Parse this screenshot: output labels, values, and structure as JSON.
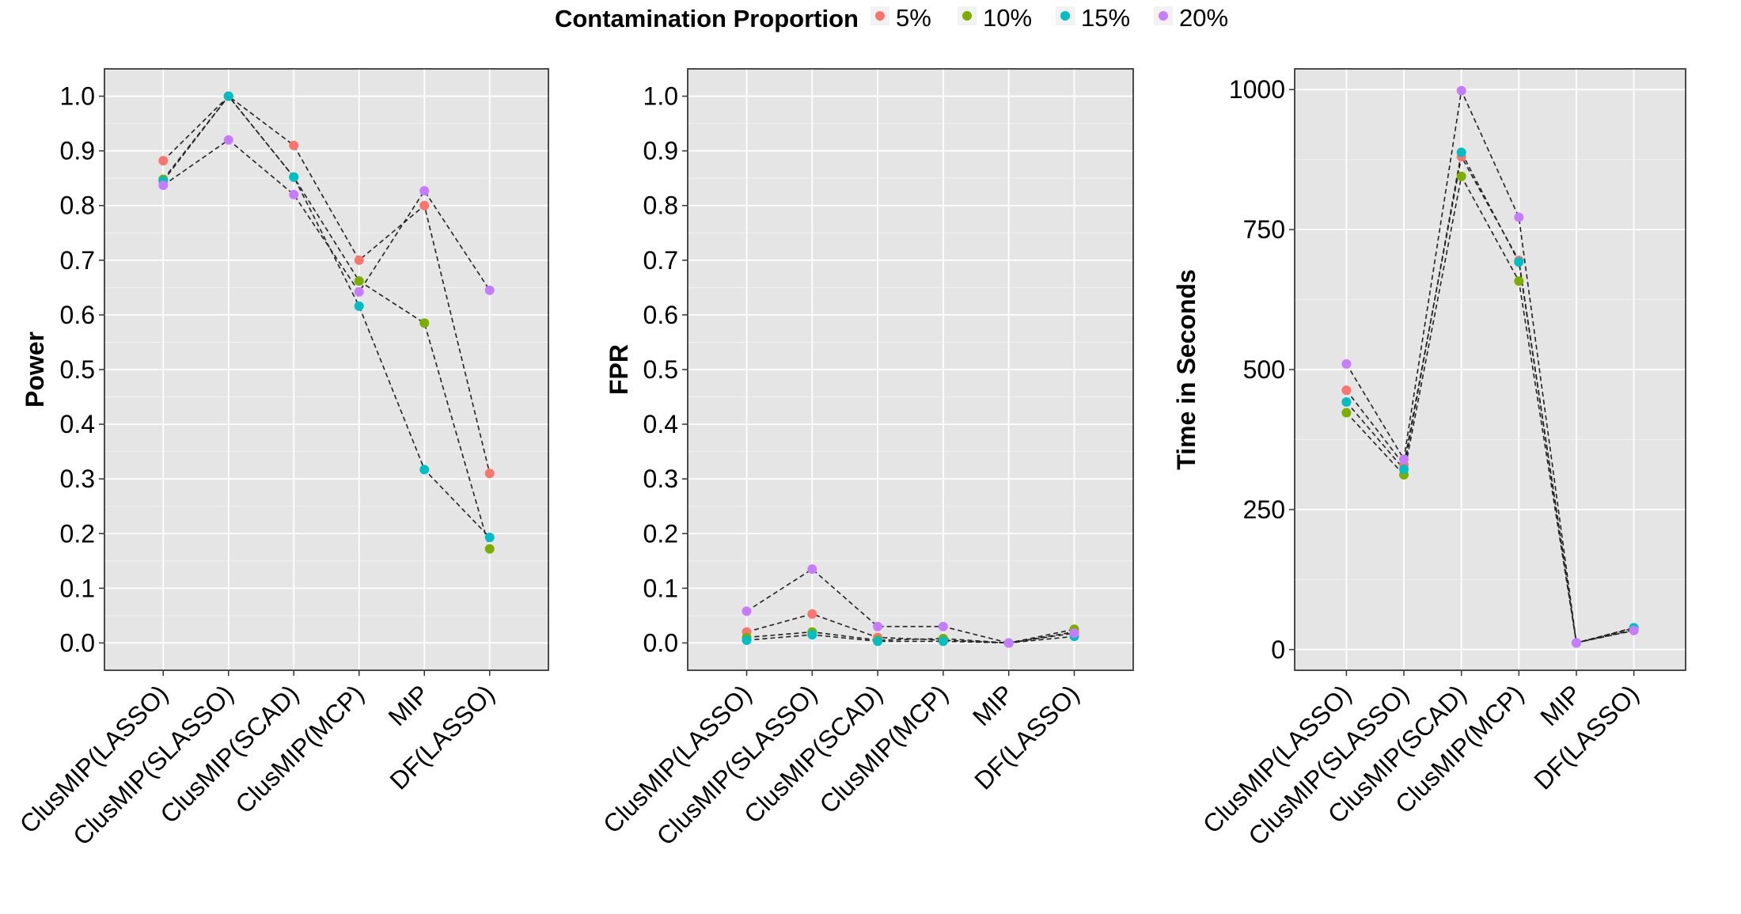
{
  "chart_data": [
    {
      "type": "line",
      "title": "",
      "xlabel": "",
      "ylabel": "Power",
      "categories": [
        "ClusMIP(LASSO)",
        "ClusMIP(SLASSO)",
        "ClusMIP(SCAD)",
        "ClusMIP(MCP)",
        "MIP",
        "DF(LASSO)"
      ],
      "ylim": [
        -0.05,
        1.05
      ],
      "yticks": [
        0.0,
        0.1,
        0.2,
        0.3,
        0.4,
        0.5,
        0.6,
        0.7,
        0.8,
        0.9,
        1.0
      ],
      "ytick_labels": [
        "0.0",
        "0.1",
        "0.2",
        "0.3",
        "0.4",
        "0.5",
        "0.6",
        "0.7",
        "0.8",
        "0.9",
        "1.0"
      ],
      "series": [
        {
          "name": "5%",
          "values": [
            0.882,
            1.0,
            0.91,
            0.7,
            0.8,
            0.31
          ]
        },
        {
          "name": "10%",
          "values": [
            0.848,
            1.0,
            0.852,
            0.662,
            0.585,
            0.172
          ]
        },
        {
          "name": "15%",
          "values": [
            0.845,
            1.0,
            0.852,
            0.616,
            0.317,
            0.193
          ]
        },
        {
          "name": "20%",
          "values": [
            0.837,
            0.92,
            0.82,
            0.642,
            0.827,
            0.645
          ]
        }
      ]
    },
    {
      "type": "line",
      "title": "",
      "xlabel": "",
      "ylabel": "FPR",
      "categories": [
        "ClusMIP(LASSO)",
        "ClusMIP(SLASSO)",
        "ClusMIP(SCAD)",
        "ClusMIP(MCP)",
        "MIP",
        "DF(LASSO)"
      ],
      "ylim": [
        -0.05,
        1.05
      ],
      "yticks": [
        0.0,
        0.1,
        0.2,
        0.3,
        0.4,
        0.5,
        0.6,
        0.7,
        0.8,
        0.9,
        1.0
      ],
      "ytick_labels": [
        "0.0",
        "0.1",
        "0.2",
        "0.3",
        "0.4",
        "0.5",
        "0.6",
        "0.7",
        "0.8",
        "0.9",
        "1.0"
      ],
      "series": [
        {
          "name": "5%",
          "values": [
            0.02,
            0.053,
            0.01,
            0.005,
            0.0,
            0.02
          ]
        },
        {
          "name": "10%",
          "values": [
            0.01,
            0.02,
            0.005,
            0.008,
            0.0,
            0.025
          ]
        },
        {
          "name": "15%",
          "values": [
            0.005,
            0.015,
            0.003,
            0.003,
            0.0,
            0.012
          ]
        },
        {
          "name": "20%",
          "values": [
            0.058,
            0.135,
            0.03,
            0.03,
            0.0,
            0.018
          ]
        }
      ]
    },
    {
      "type": "line",
      "title": "",
      "xlabel": "",
      "ylabel": "Time in Seconds",
      "categories": [
        "ClusMIP(LASSO)",
        "ClusMIP(SLASSO)",
        "ClusMIP(SCAD)",
        "ClusMIP(MCP)",
        "MIP",
        "DF(LASSO)"
      ],
      "ylim": [
        -37,
        1037
      ],
      "yticks": [
        0,
        250,
        500,
        750,
        1000
      ],
      "ytick_labels": [
        "0",
        "250",
        "500",
        "750",
        "1000"
      ],
      "series": [
        {
          "name": "5%",
          "values": [
            463,
            330,
            880,
            695,
            12,
            35
          ]
        },
        {
          "name": "10%",
          "values": [
            423,
            312,
            845,
            658,
            12,
            38
          ]
        },
        {
          "name": "15%",
          "values": [
            442,
            322,
            888,
            692,
            12,
            39
          ]
        },
        {
          "name": "20%",
          "values": [
            510,
            340,
            998,
            772,
            12,
            34
          ]
        }
      ]
    }
  ],
  "legend": {
    "title": "Contamination Proportion",
    "position": "top",
    "entries": [
      {
        "label": "5%",
        "color": "#F8766D"
      },
      {
        "label": "10%",
        "color": "#7CAE00"
      },
      {
        "label": "15%",
        "color": "#00BFC4"
      },
      {
        "label": "20%",
        "color": "#C77CFF"
      }
    ]
  },
  "colors": {
    "panel_background": "#e5e5e5",
    "grid": "#ffffff",
    "connector_line": "#222222"
  }
}
